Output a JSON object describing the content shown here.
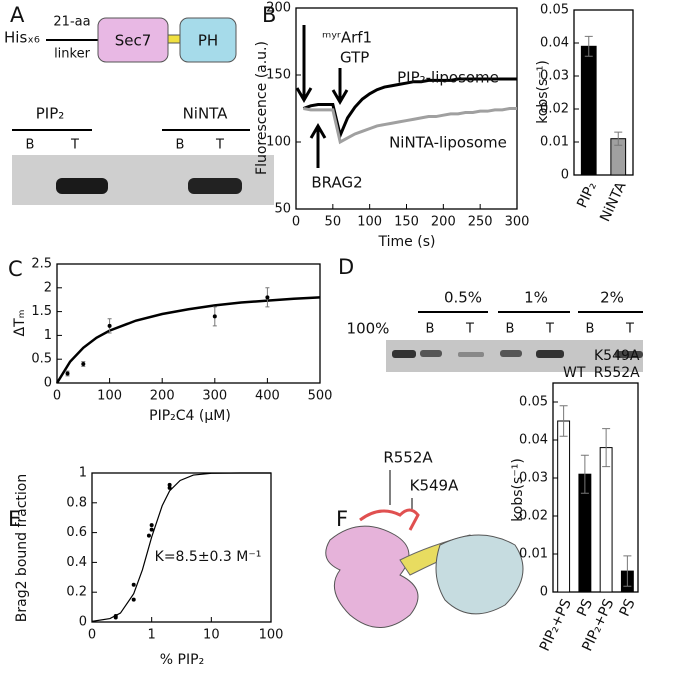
{
  "figure": {
    "panel_labels": [
      "A",
      "B",
      "C",
      "D",
      "E",
      "F"
    ],
    "schematic": {
      "tag": "Hisₓ₆",
      "linker_top": "21-aa",
      "linker_bottom": "linker",
      "domain_1": "Sec7",
      "domain_2": "PH"
    },
    "gel_a": {
      "groups": [
        "PIP₂",
        "NiNTA"
      ],
      "lanes": [
        "B",
        "T",
        "B",
        "T"
      ]
    },
    "gel_d": {
      "reference": "100%",
      "groups": [
        "0.5%",
        "1%",
        "2%"
      ],
      "lanes": [
        "B",
        "T",
        "B",
        "T",
        "B",
        "T"
      ]
    },
    "structure": {
      "labels": [
        "R552A",
        "K549A"
      ]
    }
  },
  "chart_data": [
    {
      "type": "line",
      "x_label": "Time (s)",
      "y_label": "Fluorescence (a.u.)",
      "x": [
        10,
        20,
        30,
        40,
        50,
        60,
        70,
        80,
        90,
        100,
        110,
        120,
        130,
        140,
        150,
        160,
        170,
        180,
        190,
        200,
        210,
        220,
        230,
        240,
        250,
        260,
        270,
        280,
        290,
        300
      ],
      "xlim": [
        0,
        300
      ],
      "xticks": [
        0,
        50,
        100,
        150,
        200,
        250,
        300
      ],
      "ylim": [
        50,
        200
      ],
      "yticks": [
        50,
        100,
        150,
        200
      ],
      "annotations": [
        "ᵐʸʳArf1",
        "GTP",
        "BRAG2"
      ],
      "series": [
        {
          "name": "PIP₂-liposome",
          "color": "#000000",
          "values": [
            125,
            127,
            128,
            128,
            128,
            105,
            118,
            126,
            132,
            136,
            139,
            141,
            142,
            143,
            144,
            145,
            145,
            146,
            146,
            146,
            146,
            147,
            147,
            147,
            147,
            147,
            147,
            147,
            147,
            147
          ]
        },
        {
          "name": "NiNTA-liposome",
          "color": "#a0a0a0",
          "values": [
            125,
            124,
            124,
            124,
            124,
            100,
            103,
            106,
            108,
            110,
            112,
            113,
            114,
            115,
            116,
            117,
            118,
            119,
            119,
            120,
            121,
            121,
            122,
            122,
            123,
            123,
            124,
            124,
            125,
            125
          ]
        }
      ]
    },
    {
      "type": "bar",
      "y_label": "kobs(s⁻¹)",
      "categories": [
        "PIP₂",
        "NiNTA"
      ],
      "values": [
        0.039,
        0.011
      ],
      "errors": [
        0.003,
        0.002
      ],
      "colors": [
        "#000000",
        "#a0a0a0"
      ],
      "ylim": [
        0,
        0.05
      ],
      "yticks": [
        0,
        0.01,
        0.02,
        0.03,
        0.04,
        0.05
      ]
    },
    {
      "type": "scatter",
      "x_label": "PIP₂C4 (μM)",
      "y_label": "ΔTₘ",
      "log_x": false,
      "points": {
        "x": [
          20,
          50,
          100,
          300,
          400
        ],
        "y": [
          0.2,
          0.4,
          1.2,
          1.4,
          1.8
        ],
        "errors": [
          0.05,
          0.05,
          0.15,
          0.2,
          0.2
        ]
      },
      "fit": {
        "x": [
          0,
          25,
          50,
          75,
          100,
          150,
          200,
          250,
          300,
          350,
          400,
          450,
          500
        ],
        "y": [
          0,
          0.45,
          0.74,
          0.95,
          1.1,
          1.31,
          1.45,
          1.55,
          1.63,
          1.69,
          1.73,
          1.77,
          1.8
        ]
      },
      "xlim": [
        0,
        500
      ],
      "xticks": [
        0,
        100,
        200,
        300,
        400,
        500
      ],
      "ylim": [
        0,
        2.5
      ],
      "yticks": [
        0,
        0.5,
        1,
        1.5,
        2,
        2.5
      ]
    },
    {
      "type": "scatter",
      "x_label": "% PIP₂",
      "y_label": "Brag2 bound fraction",
      "log_x": true,
      "annotation": "K=8.5±0.3 M⁻¹",
      "points": {
        "x": [
          0.25,
          0.25,
          0.5,
          0.5,
          0.9,
          1,
          1,
          2,
          2
        ],
        "y": [
          0.03,
          0.04,
          0.15,
          0.25,
          0.58,
          0.62,
          0.65,
          0.9,
          0.92
        ]
      },
      "fit": {
        "x": [
          0.1,
          0.2,
          0.3,
          0.5,
          0.7,
          1,
          1.5,
          2,
          3,
          5,
          10,
          30,
          100
        ],
        "y": [
          0.004,
          0.023,
          0.06,
          0.19,
          0.35,
          0.57,
          0.78,
          0.88,
          0.95,
          0.986,
          0.998,
          1,
          1
        ]
      },
      "xlim": [
        0.1,
        100
      ],
      "xticks": [
        {
          "value": 0.1,
          "label": "0"
        },
        1,
        10,
        100
      ],
      "ylim": [
        0,
        1
      ],
      "yticks": [
        0,
        0.2,
        0.4,
        0.6,
        0.8,
        1
      ]
    },
    {
      "type": "bar",
      "y_label": "kobs(s⁻¹)",
      "groups": [
        [
          "WT"
        ],
        [
          "K549A",
          "R552A"
        ]
      ],
      "categories": [
        "PIP₂+PS",
        "PS",
        "PIP₂+PS",
        "PS"
      ],
      "values": [
        0.045,
        0.031,
        0.038,
        0.0055
      ],
      "errors": [
        0.004,
        0.005,
        0.005,
        0.004
      ],
      "colors": [
        "#ffffff",
        "#000000",
        "#ffffff",
        "#000000"
      ],
      "ylim": [
        0,
        0.055
      ],
      "yticks": [
        0,
        0.01,
        0.02,
        0.03,
        0.04,
        0.05
      ]
    }
  ]
}
